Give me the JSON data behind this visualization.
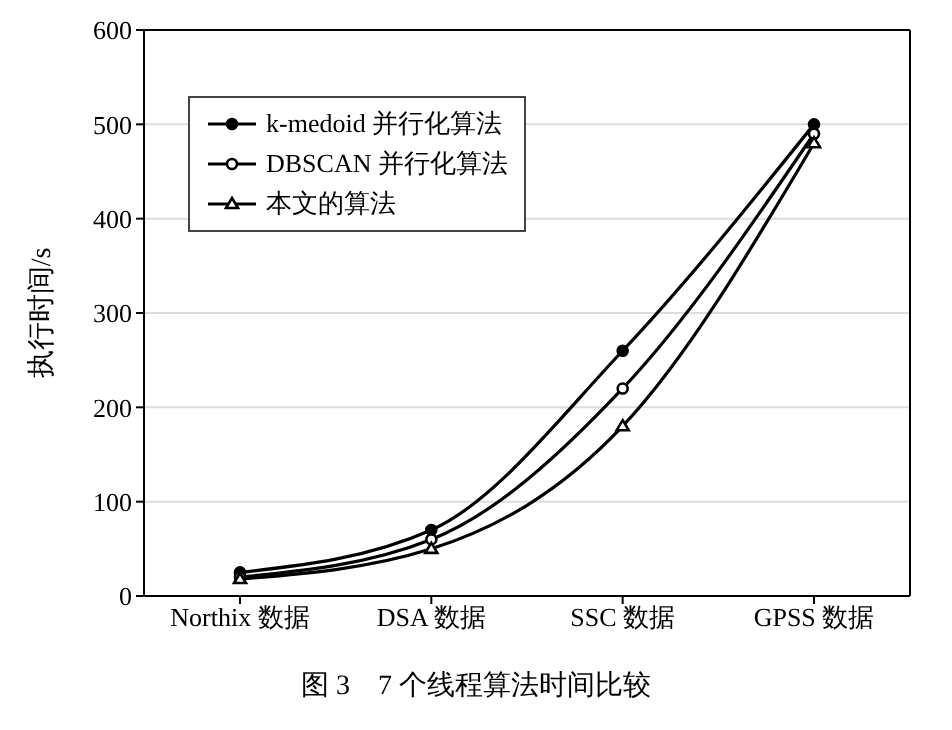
{
  "chart_data": {
    "type": "line",
    "title": "图 3　7 个线程算法时间比较",
    "ylabel": "执行时间/s",
    "categories": [
      "Northix 数据",
      "DSA 数据",
      "SSC 数据",
      "GPSS 数据"
    ],
    "series": [
      {
        "name": "k-medoid 并行化算法",
        "color": "#000000",
        "marker": "circle",
        "values": [
          25,
          70,
          260,
          500
        ]
      },
      {
        "name": "DBSCAN 并行化算法",
        "color": "#000000",
        "marker": "circle",
        "values": [
          20,
          60,
          220,
          490
        ]
      },
      {
        "name": "本文的算法",
        "color": "#000000",
        "marker": "triangle",
        "values": [
          18,
          50,
          180,
          480
        ]
      }
    ],
    "ylim": [
      0,
      600
    ],
    "yticks": [
      0,
      100,
      200,
      300,
      400,
      500,
      600
    ],
    "grid": "y",
    "legend": "top left",
    "line_style": "solid"
  }
}
